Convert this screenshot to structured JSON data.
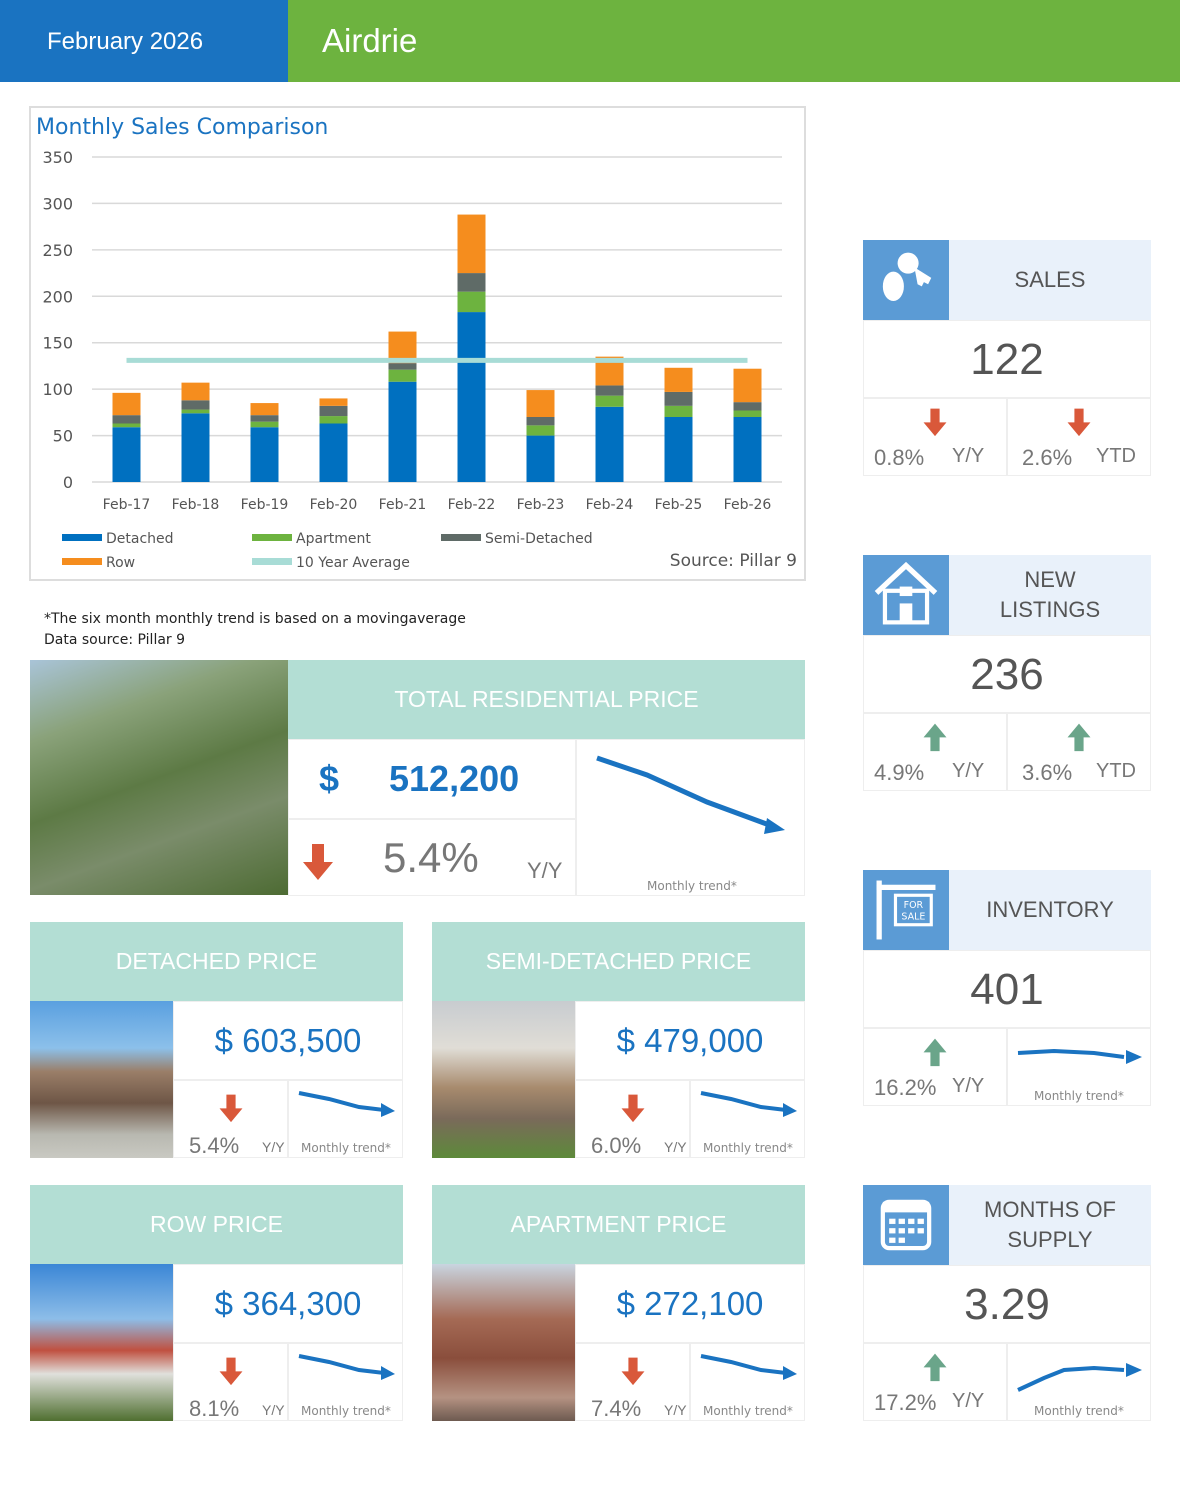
{
  "header": {
    "date": "February 2026",
    "region": "Airdrie"
  },
  "chart_data": {
    "type": "bar",
    "stacked": true,
    "title": "Monthly Sales Comparison",
    "categories": [
      "Feb-17",
      "Feb-18",
      "Feb-19",
      "Feb-20",
      "Feb-21",
      "Feb-22",
      "Feb-23",
      "Feb-24",
      "Feb-25",
      "Feb-26"
    ],
    "series": [
      {
        "name": "Detached",
        "color": "#0070c0",
        "values": [
          59,
          74,
          59,
          63,
          108,
          183,
          50,
          81,
          70,
          70
        ]
      },
      {
        "name": "Apartment",
        "color": "#6db33f",
        "values": [
          4,
          4,
          6,
          8,
          13,
          22,
          11,
          12,
          12,
          7
        ]
      },
      {
        "name": "Semi-Detached",
        "color": "#5f6b67",
        "values": [
          9,
          10,
          7,
          11,
          7,
          20,
          9,
          11,
          15,
          9
        ]
      },
      {
        "name": "Row",
        "color": "#f58d1e",
        "values": [
          24,
          19,
          13,
          8,
          34,
          63,
          29,
          31,
          26,
          36
        ]
      }
    ],
    "line": {
      "name": "10 Year Average",
      "color": "#a8dcd6",
      "value": 131
    },
    "yticks": [
      0,
      50,
      100,
      150,
      200,
      250,
      300,
      350
    ],
    "ylim": [
      0,
      350
    ],
    "grid": true,
    "legend": "bottom",
    "source": "Source: Pillar 9"
  },
  "notes": {
    "trend": "*The six month monthly trend is based on a movingaverage",
    "source": "Data source: Pillar 9"
  },
  "total": {
    "title": "TOTAL RESIDENTIAL PRICE",
    "currency": "$",
    "price": "512,200",
    "pct": "5.4%",
    "period": "Y/Y",
    "trend": "Monthly trend*",
    "direction": "down"
  },
  "types": [
    {
      "title": "DETACHED PRICE",
      "price": "$ 603,500",
      "pct": "5.4%",
      "period": "Y/Y",
      "trend": "Monthly trend*",
      "direction": "down"
    },
    {
      "title": "SEMI-DETACHED PRICE",
      "price": "$ 479,000",
      "pct": "6.0%",
      "period": "Y/Y",
      "trend": "Monthly trend*",
      "direction": "down"
    },
    {
      "title": "ROW PRICE",
      "price": "$ 364,300",
      "pct": "8.1%",
      "period": "Y/Y",
      "trend": "Monthly trend*",
      "direction": "down"
    },
    {
      "title": "APARTMENT PRICE",
      "price": "$ 272,100",
      "pct": "7.4%",
      "period": "Y/Y",
      "trend": "Monthly trend*",
      "direction": "down"
    }
  ],
  "cards": [
    {
      "title": "SALES",
      "icon": "keys-icon",
      "value": "122",
      "yy": "0.8%",
      "yy_label": "Y/Y",
      "ytd": "2.6%",
      "ytd_label": "YTD",
      "yy_dir": "down",
      "ytd_dir": "down"
    },
    {
      "title": "NEW LISTINGS",
      "icon": "house-icon",
      "value": "236",
      "yy": "4.9%",
      "yy_label": "Y/Y",
      "ytd": "3.6%",
      "ytd_label": "YTD",
      "yy_dir": "up",
      "ytd_dir": "up"
    },
    {
      "title": "INVENTORY",
      "icon": "for-sale-sign-icon",
      "value": "401",
      "yy": "16.2%",
      "yy_label": "Y/Y",
      "trend": "Monthly trend*",
      "yy_dir": "up"
    },
    {
      "title": "MONTHS OF SUPPLY",
      "icon": "calendar-icon",
      "value": "3.29",
      "yy": "17.2%",
      "yy_label": "Y/Y",
      "trend": "Monthly trend*",
      "yy_dir": "up"
    }
  ],
  "colors": {
    "blue": "#1a73c1",
    "green": "#6db33f",
    "teal": "#b3ded4",
    "down": "#d9583a",
    "up": "#6aa58a"
  }
}
